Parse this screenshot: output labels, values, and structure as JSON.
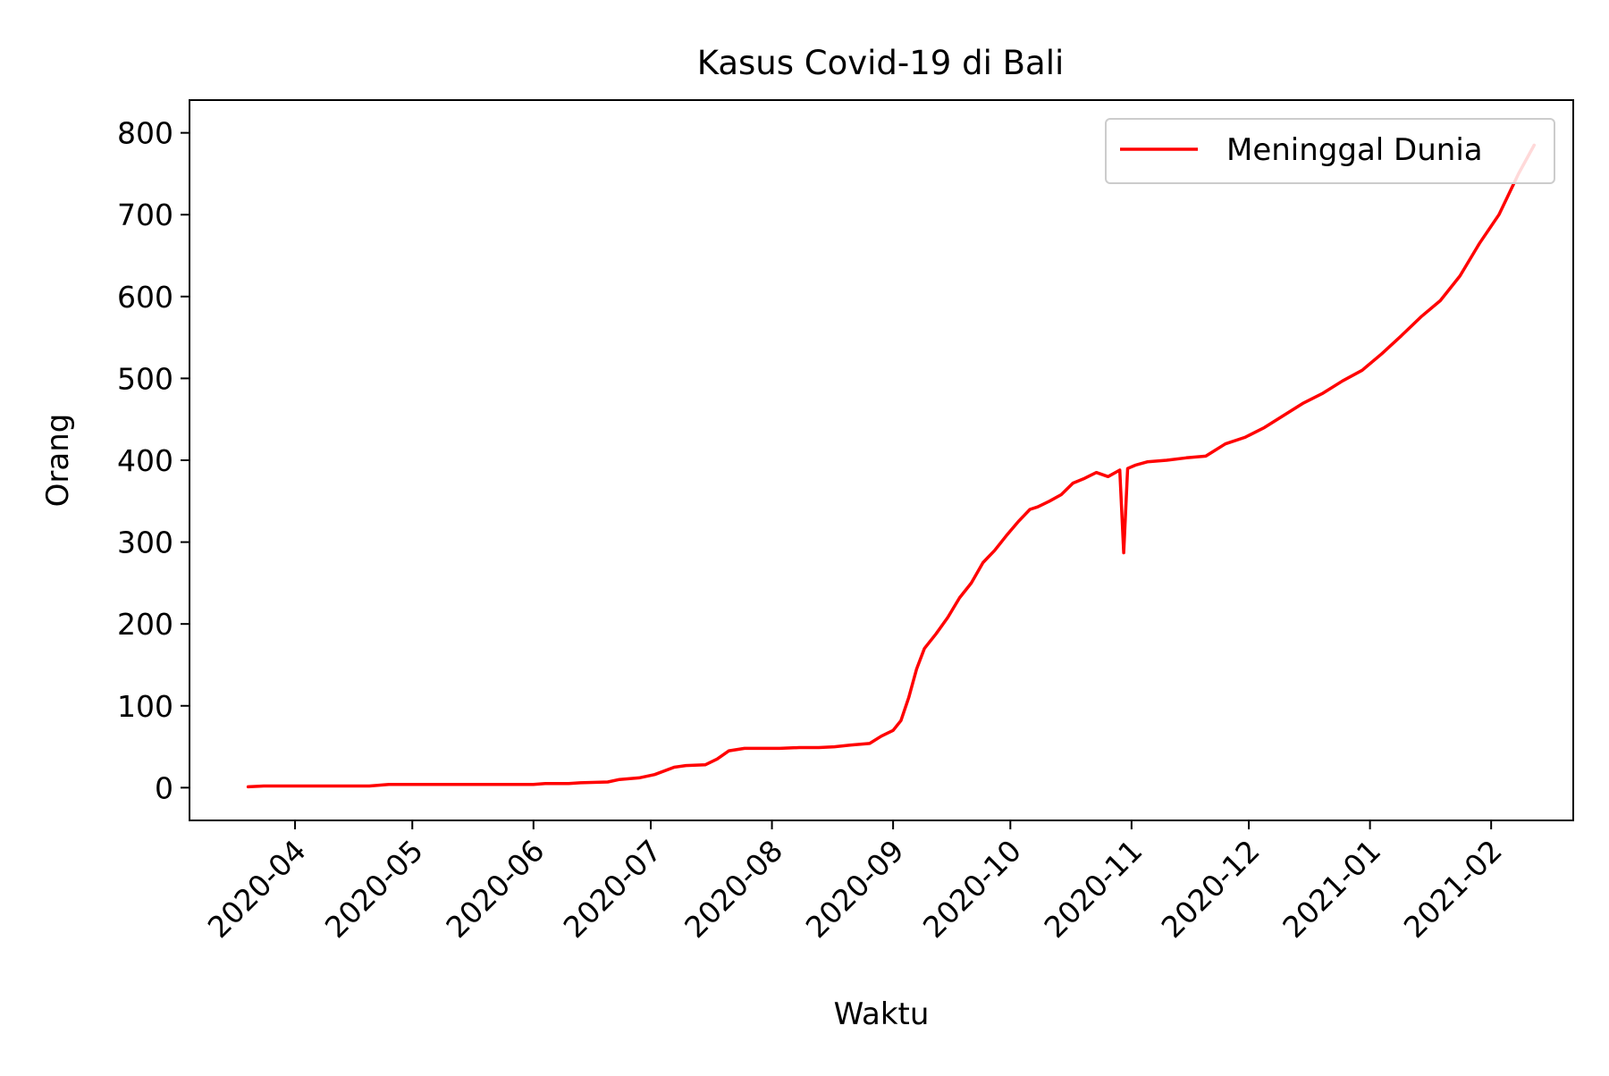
{
  "chart_data": {
    "type": "line",
    "title": "Kasus Covid-19 di Bali",
    "xlabel": "Waktu",
    "ylabel": "Orang",
    "x_scale": "date",
    "xlim": [
      "2020-03-05",
      "2021-02-22"
    ],
    "ylim": [
      -40,
      840
    ],
    "x_ticks": [
      "2020-04-01",
      "2020-05-01",
      "2020-06-01",
      "2020-07-01",
      "2020-08-01",
      "2020-09-01",
      "2020-10-01",
      "2020-11-01",
      "2020-12-01",
      "2021-01-01",
      "2021-02-01"
    ],
    "x_tick_labels": [
      "2020-04",
      "2020-05",
      "2020-06",
      "2020-07",
      "2020-08",
      "2020-09",
      "2020-10",
      "2020-11",
      "2020-12",
      "2021-01",
      "2021-02"
    ],
    "y_ticks": [
      0,
      100,
      200,
      300,
      400,
      500,
      600,
      700,
      800
    ],
    "y_tick_labels": [
      "0",
      "100",
      "200",
      "300",
      "400",
      "500",
      "600",
      "700",
      "800"
    ],
    "grid": false,
    "legend_position": "top-right",
    "series": [
      {
        "name": "Meninggal Dunia",
        "color": "#ff0000",
        "x": [
          "2020-03-20",
          "2020-03-24",
          "2020-04-05",
          "2020-04-15",
          "2020-04-20",
          "2020-04-25",
          "2020-05-15",
          "2020-06-01",
          "2020-06-04",
          "2020-06-10",
          "2020-06-13",
          "2020-06-20",
          "2020-06-23",
          "2020-06-28",
          "2020-07-02",
          "2020-07-07",
          "2020-07-10",
          "2020-07-15",
          "2020-07-18",
          "2020-07-21",
          "2020-07-25",
          "2020-07-28",
          "2020-08-03",
          "2020-08-08",
          "2020-08-13",
          "2020-08-17",
          "2020-08-21",
          "2020-08-26",
          "2020-08-29",
          "2020-09-01",
          "2020-09-03",
          "2020-09-05",
          "2020-09-07",
          "2020-09-09",
          "2020-09-12",
          "2020-09-15",
          "2020-09-18",
          "2020-09-21",
          "2020-09-24",
          "2020-09-27",
          "2020-09-30",
          "2020-10-03",
          "2020-10-06",
          "2020-10-08",
          "2020-10-11",
          "2020-10-14",
          "2020-10-17",
          "2020-10-20",
          "2020-10-23",
          "2020-10-26",
          "2020-10-29",
          "2020-10-30",
          "2020-10-31",
          "2020-11-02",
          "2020-11-05",
          "2020-11-10",
          "2020-11-15",
          "2020-11-20",
          "2020-11-25",
          "2020-11-30",
          "2020-12-05",
          "2020-12-10",
          "2020-12-15",
          "2020-12-20",
          "2020-12-25",
          "2020-12-30",
          "2021-01-04",
          "2021-01-09",
          "2021-01-14",
          "2021-01-19",
          "2021-01-24",
          "2021-01-29",
          "2021-02-03",
          "2021-02-08",
          "2021-02-12"
        ],
        "y": [
          1,
          2,
          2,
          2,
          2,
          4,
          4,
          4,
          5,
          5,
          6,
          7,
          10,
          12,
          16,
          25,
          27,
          28,
          35,
          45,
          48,
          48,
          48,
          49,
          49,
          50,
          52,
          54,
          63,
          70,
          82,
          110,
          145,
          170,
          188,
          208,
          232,
          250,
          275,
          290,
          308,
          325,
          340,
          343,
          350,
          358,
          372,
          378,
          385,
          380,
          388,
          287,
          390,
          394,
          398,
          400,
          403,
          405,
          420,
          428,
          440,
          455,
          470,
          482,
          497,
          510,
          530,
          552,
          575,
          595,
          625,
          665,
          700,
          750,
          785
        ]
      }
    ]
  }
}
